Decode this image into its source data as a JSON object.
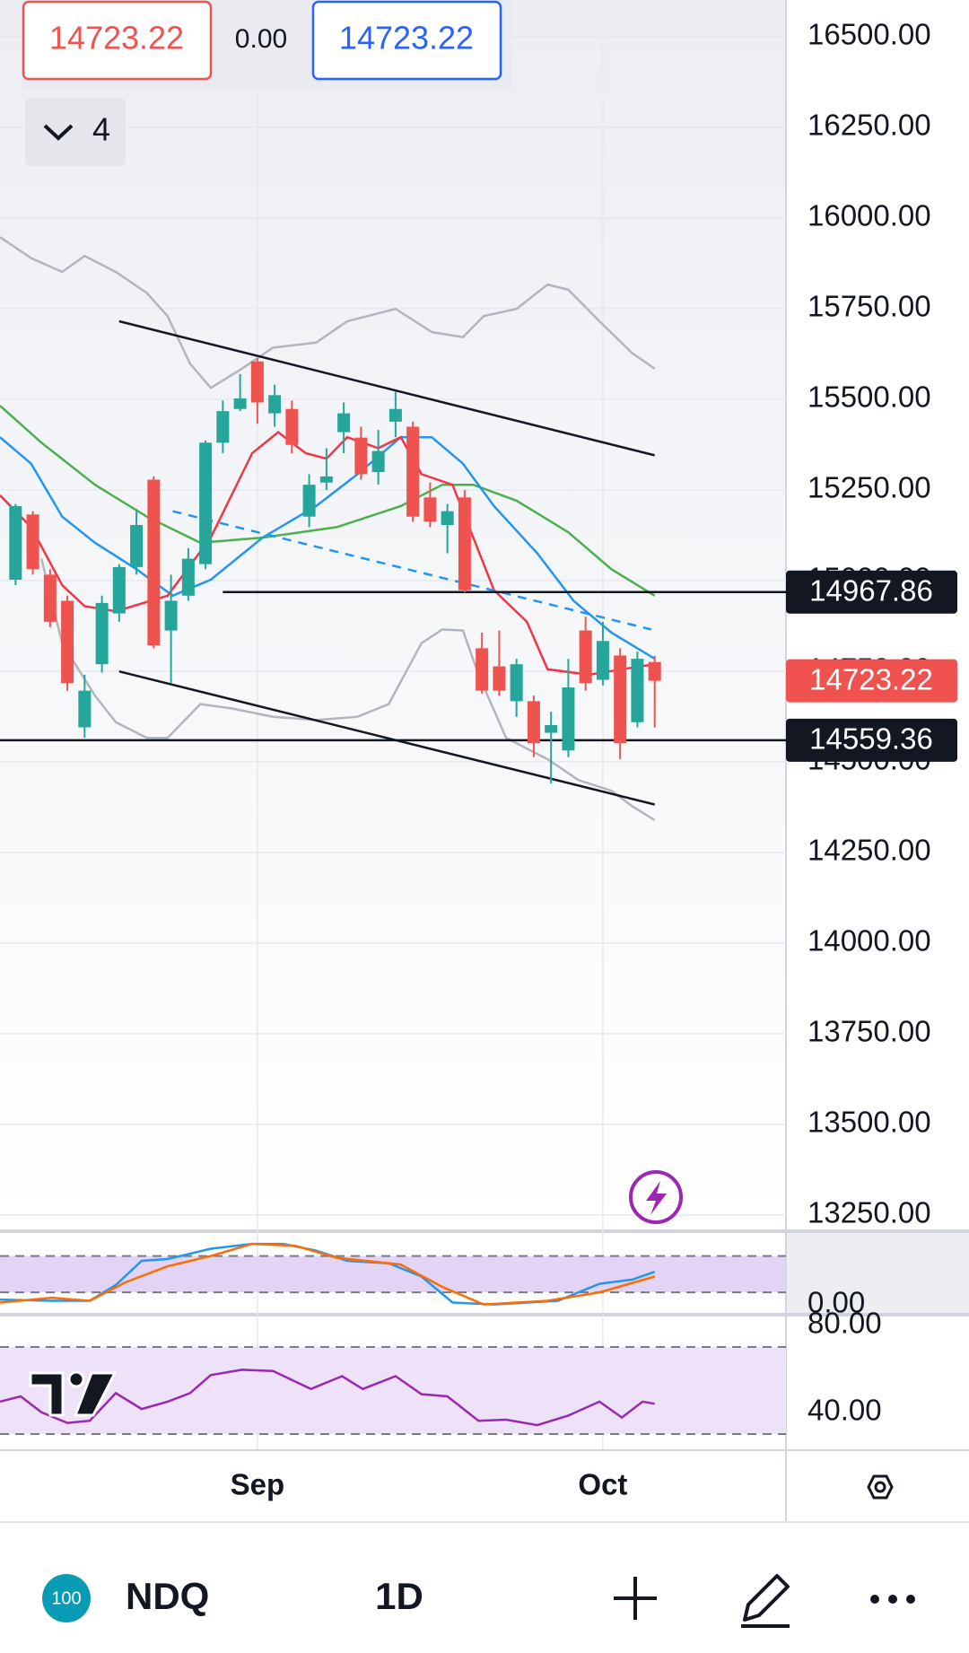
{
  "header": {
    "bid": "14723.22",
    "spread": "0.00",
    "ask": "14723.22",
    "indicators": "4"
  },
  "chart_data": {
    "type": "candlestick",
    "categories": [
      null,
      null,
      null,
      null,
      null,
      null,
      null,
      null,
      null,
      null,
      null,
      null,
      null,
      null,
      "Sep",
      null,
      null,
      null,
      null,
      null,
      null,
      null,
      null,
      null,
      null,
      null,
      null,
      null,
      null,
      null,
      null,
      null,
      null,
      null,
      "Oct",
      null,
      null,
      null
    ],
    "open": [
      15002,
      15182,
      15016,
      14944,
      14595,
      14769,
      14909,
      15037,
      15278,
      14862,
      14958,
      15045,
      15380,
      15473,
      15604,
      15461,
      15473,
      15176,
      15270,
      15409,
      15394,
      15299,
      15438,
      15424,
      15229,
      15153,
      15229,
      14813,
      14763,
      14667,
      14667,
      14580,
      14531,
      14862,
      14726,
      14793,
      14609,
      14775
    ],
    "high": [
      15211,
      15191,
      15031,
      14958,
      14740,
      14958,
      15045,
      15197,
      15287,
      15016,
      15089,
      15386,
      15496,
      15569,
      15613,
      15540,
      15496,
      15293,
      15365,
      15491,
      15424,
      15415,
      15520,
      15438,
      15270,
      15211,
      15249,
      14856,
      14862,
      14784,
      14682,
      14638,
      14784,
      14900,
      14886,
      14813,
      14804,
      14792
    ],
    "low": [
      14987,
      15016,
      14871,
      14696,
      14566,
      14746,
      14886,
      15016,
      14813,
      14717,
      14944,
      15031,
      15351,
      15467,
      15432,
      15424,
      15351,
      15147,
      15249,
      15351,
      15278,
      15264,
      15395,
      15162,
      15147,
      15075,
      14967,
      14688,
      14682,
      14624,
      14513,
      14440,
      14513,
      14696,
      14711,
      14507,
      14595,
      14595
    ],
    "close": [
      15205,
      15031,
      14886,
      14717,
      14696,
      14938,
      15037,
      15153,
      14821,
      14944,
      15060,
      15380,
      15467,
      15502,
      15491,
      15511,
      15374,
      15264,
      15287,
      15461,
      15293,
      15357,
      15473,
      15176,
      15162,
      15191,
      14973,
      14696,
      14696,
      14769,
      14551,
      14601,
      14705,
      14717,
      14833,
      14551,
      14784,
      14723.22
    ],
    "up_color": "#26a69a",
    "down_color": "#ef5350",
    "xlim": [
      -0.9,
      44.6
    ],
    "ylim": [
      13210,
      16601
    ],
    "yticks": [
      {
        "value": 16500,
        "label": "16500.00"
      },
      {
        "value": 16250,
        "label": "16250.00"
      },
      {
        "value": 16000,
        "label": "16000.00"
      },
      {
        "value": 15750,
        "label": "15750.00"
      },
      {
        "value": 15500,
        "label": "15500.00"
      },
      {
        "value": 15250,
        "label": "15250.00"
      },
      {
        "value": 15000,
        "label": "15000.00"
      },
      {
        "value": 14750,
        "label": "14750.00"
      },
      {
        "value": 14500,
        "label": "14500.00"
      },
      {
        "value": 14250,
        "label": "14250.00"
      },
      {
        "value": 14000,
        "label": "14000.00"
      },
      {
        "value": 13750,
        "label": "13750.00"
      },
      {
        "value": 13500,
        "label": "13500.00"
      },
      {
        "value": 13250,
        "label": "13250.00"
      }
    ],
    "lines": [
      {
        "color": "#b2b5be",
        "x": [
          -0.9,
          0.9,
          2.7,
          4.0,
          5.8,
          7.6,
          8.8,
          10.1,
          11.3,
          13.1,
          14.9,
          17.4,
          19.2,
          22.0,
          24.1,
          25.9,
          27.1,
          29.0,
          30.8,
          32.0,
          33.8,
          35.7,
          37.0
        ],
        "values": [
          15947,
          15889,
          15851,
          15895,
          15851,
          15793,
          15729,
          15598,
          15531,
          15584,
          15642,
          15656,
          15715,
          15749,
          15685,
          15671,
          15729,
          15749,
          15816,
          15802,
          15715,
          15627,
          15584
        ]
      },
      {
        "color": "#b2b5be",
        "x": [
          1.5,
          2.7,
          4.6,
          5.8,
          7.6,
          8.8,
          10.7,
          12.5,
          14.9,
          17.4,
          19.8,
          21.6,
          23.5,
          24.7,
          25.9,
          26.8,
          28.4,
          30.8,
          32.6,
          34.5,
          35.7,
          37.0
        ],
        "values": [
          15060,
          14827,
          14682,
          14609,
          14566,
          14566,
          14659,
          14647,
          14624,
          14615,
          14624,
          14659,
          14827,
          14865,
          14862,
          14740,
          14566,
          14507,
          14449,
          14420,
          14377,
          14339
        ]
      },
      {
        "color": "#4caf50",
        "x": [
          -0.9,
          1.5,
          4.6,
          7.6,
          10.7,
          14.3,
          18.6,
          22.3,
          24.7,
          26.5,
          29.0,
          32.0,
          34.5,
          37.0
        ],
        "values": [
          15482,
          15380,
          15264,
          15176,
          15104,
          15118,
          15147,
          15205,
          15264,
          15264,
          15220,
          15133,
          15031,
          14958
        ]
      },
      {
        "color": "#2196f3",
        "x": [
          -0.9,
          0.9,
          2.7,
          4.6,
          7.0,
          9.1,
          11.3,
          14.3,
          17.4,
          19.8,
          22.3,
          24.1,
          25.9,
          27.7,
          30.2,
          32.3,
          34.5,
          37.0
        ],
        "values": [
          15395,
          15322,
          15176,
          15104,
          15031,
          14958,
          15002,
          15118,
          15205,
          15293,
          15395,
          15395,
          15322,
          15205,
          15075,
          14944,
          14856,
          14784
        ]
      },
      {
        "color": "#f23645",
        "x": [
          -0.9,
          0.9,
          2.7,
          4.0,
          5.8,
          8.8,
          11.3,
          13.7,
          15.2,
          16.8,
          18.0,
          19.2,
          21.0,
          22.3,
          23.5,
          25.3,
          26.5,
          27.7,
          29.6,
          30.8,
          33.2,
          35.1,
          37.0
        ],
        "values": [
          15235,
          15147,
          14987,
          14929,
          14915,
          14958,
          15118,
          15351,
          15409,
          15351,
          15336,
          15395,
          15365,
          15395,
          15293,
          15264,
          15118,
          14973,
          14886,
          14755,
          14740,
          14755,
          14769
        ]
      }
    ],
    "trend_lines": [
      {
        "color": "#131722",
        "dashed": false,
        "x": [
          6,
          37
        ],
        "values": [
          15715,
          15345
        ]
      },
      {
        "color": "#131722",
        "dashed": false,
        "x": [
          6,
          37
        ],
        "values": [
          14749,
          14382
        ]
      },
      {
        "color": "#2196f3",
        "dashed": true,
        "x": [
          9.1,
          36.8
        ],
        "values": [
          15191,
          14865
        ]
      }
    ],
    "levels": [
      {
        "value": 14967.86,
        "color": "#131722",
        "x": [
          12,
          44.6
        ]
      },
      {
        "value": 14559.36,
        "color": "#131722",
        "x": [
          -0.9,
          44.6
        ]
      }
    ],
    "last": {
      "value": 14723.22,
      "color": "#f0524f"
    },
    "stoch": {
      "ylim": [
        -14,
        118
      ],
      "yticks": [
        {
          "value": 0,
          "label": "0.00"
        }
      ],
      "bands": [
        20,
        80
      ],
      "series": [
        {
          "color": "#2196f3",
          "x": [
            -0.9,
            2.1,
            4.3,
            5.8,
            7.3,
            8.8,
            11.3,
            13.7,
            15.5,
            17.4,
            19.2,
            21.6,
            23.5,
            25.3,
            27.7,
            31.4,
            33.8,
            35.7,
            37
          ],
          "values": [
            8,
            6,
            6,
            32,
            72,
            75,
            92,
            100,
            100,
            89,
            72,
            68,
            46,
            3,
            0,
            6,
            34,
            41,
            54
          ]
        },
        {
          "color": "#ff6d00",
          "x": [
            -0.9,
            2.1,
            4.3,
            6.4,
            8.8,
            11.3,
            13.7,
            16.2,
            18.6,
            22.3,
            24.7,
            27.1,
            30.8,
            33.8,
            37
          ],
          "values": [
            3,
            11,
            6,
            37,
            63,
            80,
            100,
            97,
            77,
            66,
            29,
            0,
            6,
            20,
            46
          ]
        }
      ]
    },
    "rsi": {
      "ylim": [
        23,
        84
      ],
      "yticks": [
        {
          "value": 80,
          "label": "80.00"
        },
        {
          "value": 40,
          "label": "40.00"
        }
      ],
      "bands": [
        30,
        70
      ],
      "series": [
        {
          "color": "#9c27b0",
          "x": [
            -0.9,
            0.3,
            1.5,
            3.0,
            4.3,
            5.8,
            7.3,
            8.8,
            10.1,
            11.3,
            13.1,
            14.9,
            17.1,
            18.9,
            20.1,
            22.0,
            23.5,
            25.0,
            26.8,
            28.4,
            30.2,
            32.0,
            33.8,
            35.1,
            36.3,
            37.0
          ],
          "values": [
            44.9,
            47.3,
            40,
            35.1,
            36.1,
            48.8,
            41.5,
            44.9,
            48.8,
            57.1,
            59.5,
            59,
            50.7,
            56.6,
            50.7,
            56.6,
            48.3,
            47.3,
            36.1,
            36.6,
            34.1,
            38.5,
            44.9,
            37.6,
            44.9,
            43.9
          ]
        }
      ]
    }
  },
  "toolbar": {
    "badge": "100",
    "symbol": "NDQ",
    "interval": "1D"
  }
}
